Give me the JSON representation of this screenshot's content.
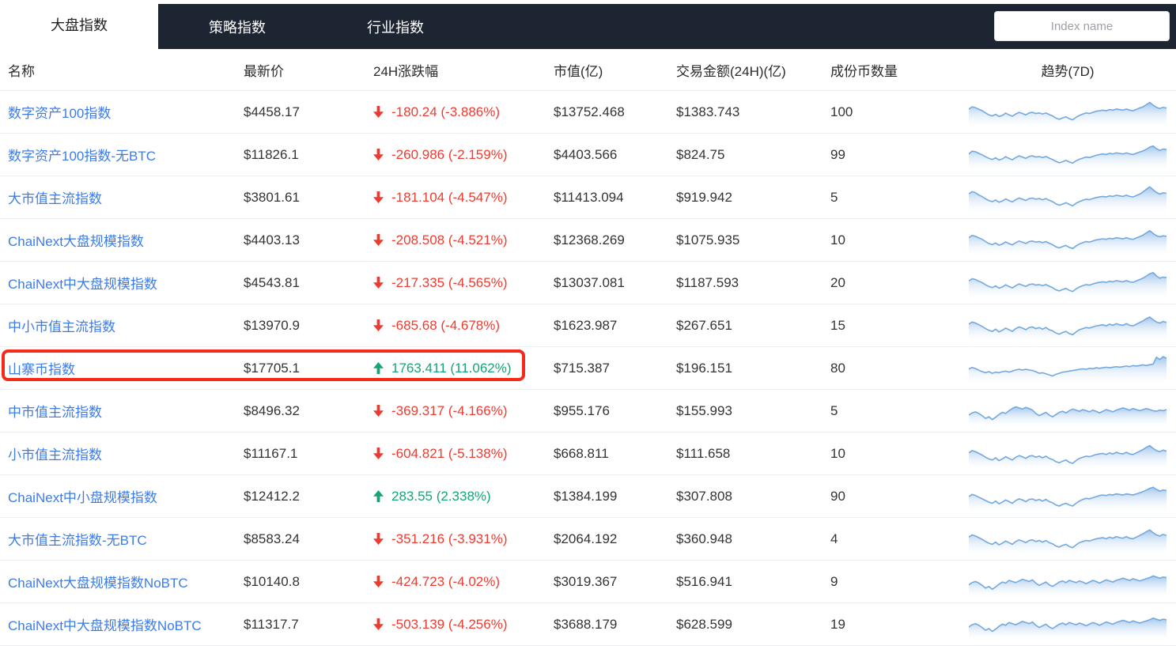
{
  "tabs": {
    "items": [
      "大盘指数",
      "策略指数",
      "行业指数"
    ],
    "active": "大盘指数"
  },
  "search": {
    "placeholder": "Index name"
  },
  "colors": {
    "tabbar_bg": "#1c2531",
    "link_blue": "#3d7ce8",
    "down_red": "#ee3b30",
    "up_green": "#14a576",
    "highlight_border": "#f42a1a",
    "spark_line": "#74a9e0",
    "spark_fill_top": "#9dc3ec"
  },
  "table": {
    "headers": {
      "name": "名称",
      "price": "最新价",
      "change": "24H涨跌幅",
      "market_cap": "市值(亿)",
      "volume": "交易金额(24H)(亿)",
      "coin_count": "成份币数量",
      "trend": "趋势(7D)"
    },
    "rows": [
      {
        "name": "数字资产100指数",
        "price": "$4458.17",
        "direction": "down",
        "change": "-180.24 (-3.886%)",
        "market_cap": "$13752.468",
        "volume": "$1383.743",
        "coin_count": "100",
        "highlighted": false,
        "sparkline": [
          66,
          74,
          71,
          65,
          60,
          52,
          45,
          41,
          47,
          39,
          43,
          51,
          45,
          40,
          48,
          54,
          50,
          45,
          52,
          54,
          50,
          52,
          48,
          52,
          46,
          41,
          33,
          29,
          34,
          38,
          31,
          27,
          36,
          43,
          48,
          52,
          50,
          54,
          58,
          60,
          62,
          60,
          64,
          62,
          66,
          64,
          62,
          66,
          62,
          60,
          65,
          70,
          74,
          82,
          90,
          80,
          72,
          68,
          72,
          70
        ]
      },
      {
        "name": "数字资产100指数-无BTC",
        "price": "$11826.1",
        "direction": "down",
        "change": "-260.986 (-2.159%)",
        "market_cap": "$4403.566",
        "volume": "$824.75",
        "coin_count": "99",
        "highlighted": false,
        "sparkline": [
          58,
          68,
          66,
          60,
          55,
          48,
          42,
          38,
          44,
          36,
          40,
          48,
          42,
          37,
          45,
          51,
          47,
          42,
          49,
          51,
          47,
          49,
          45,
          49,
          43,
          38,
          31,
          26,
          30,
          35,
          29,
          25,
          33,
          39,
          43,
          47,
          45,
          49,
          53,
          56,
          58,
          56,
          60,
          58,
          62,
          60,
          58,
          62,
          58,
          56,
          61,
          65,
          69,
          75,
          83,
          87,
          77,
          71,
          76,
          74
        ]
      },
      {
        "name": "大市值主流指数",
        "price": "$3801.61",
        "direction": "down",
        "change": "-181.104 (-4.547%)",
        "market_cap": "$11413.094",
        "volume": "$919.942",
        "coin_count": "5",
        "highlighted": false,
        "sparkline": [
          68,
          76,
          72,
          64,
          58,
          50,
          44,
          40,
          46,
          38,
          42,
          50,
          44,
          39,
          47,
          53,
          49,
          44,
          51,
          53,
          49,
          51,
          47,
          51,
          45,
          40,
          32,
          27,
          31,
          36,
          30,
          25,
          34,
          40,
          45,
          49,
          47,
          51,
          55,
          57,
          59,
          57,
          61,
          59,
          63,
          61,
          59,
          63,
          59,
          57,
          62,
          67,
          75,
          85,
          93,
          83,
          73,
          67,
          72,
          70
        ]
      },
      {
        "name": "ChaiNext大盘规模指数",
        "price": "$4403.13",
        "direction": "down",
        "change": "-208.508 (-4.521%)",
        "market_cap": "$12368.269",
        "volume": "$1075.935",
        "coin_count": "10",
        "highlighted": false,
        "sparkline": [
          64,
          72,
          69,
          63,
          58,
          50,
          43,
          39,
          45,
          37,
          41,
          49,
          43,
          38,
          46,
          52,
          48,
          43,
          50,
          52,
          48,
          50,
          46,
          50,
          44,
          39,
          31,
          27,
          32,
          36,
          29,
          25,
          34,
          41,
          46,
          50,
          48,
          52,
          56,
          58,
          60,
          58,
          62,
          60,
          64,
          62,
          60,
          64,
          60,
          58,
          63,
          68,
          73,
          81,
          89,
          79,
          71,
          67,
          71,
          69
        ]
      },
      {
        "name": "ChaiNext中大盘规模指数",
        "price": "$4543.81",
        "direction": "down",
        "change": "-217.335 (-4.565%)",
        "market_cap": "$13037.081",
        "volume": "$1187.593",
        "coin_count": "20",
        "highlighted": false,
        "sparkline": [
          62,
          70,
          67,
          61,
          56,
          48,
          42,
          38,
          44,
          36,
          40,
          48,
          42,
          37,
          45,
          51,
          47,
          42,
          49,
          51,
          47,
          49,
          45,
          49,
          43,
          38,
          30,
          26,
          31,
          35,
          28,
          24,
          33,
          40,
          45,
          49,
          47,
          51,
          55,
          57,
          59,
          57,
          61,
          59,
          63,
          61,
          59,
          63,
          59,
          57,
          62,
          67,
          72,
          80,
          88,
          92,
          80,
          72,
          76,
          74
        ]
      },
      {
        "name": "中小市值主流指数",
        "price": "$13970.9",
        "direction": "down",
        "change": "-685.68 (-4.678%)",
        "market_cap": "$1623.987",
        "volume": "$267.651",
        "coin_count": "15",
        "highlighted": false,
        "sparkline": [
          60,
          68,
          64,
          58,
          52,
          44,
          38,
          34,
          42,
          32,
          38,
          46,
          40,
          34,
          44,
          50,
          46,
          40,
          48,
          50,
          44,
          48,
          42,
          48,
          40,
          36,
          28,
          24,
          30,
          34,
          26,
          22,
          32,
          40,
          44,
          48,
          46,
          50,
          54,
          56,
          58,
          54,
          60,
          56,
          62,
          58,
          56,
          62,
          56,
          54,
          60,
          66,
          72,
          80,
          86,
          76,
          68,
          64,
          70,
          66
        ]
      },
      {
        "name": "山寨币指数",
        "price": "$17705.1",
        "direction": "up",
        "change": "1763.411 (11.062%)",
        "market_cap": "$715.387",
        "volume": "$196.151",
        "coin_count": "80",
        "highlighted": true,
        "sparkline": [
          52,
          58,
          54,
          48,
          43,
          39,
          43,
          37,
          41,
          39,
          43,
          45,
          41,
          45,
          49,
          51,
          49,
          51,
          49,
          47,
          43,
          37,
          39,
          35,
          31,
          27,
          33,
          37,
          41,
          43,
          45,
          47,
          49,
          51,
          53,
          51,
          55,
          53,
          57,
          55,
          57,
          59,
          57,
          59,
          61,
          59,
          61,
          63,
          61,
          65,
          63,
          65,
          67,
          65,
          68,
          70,
          95,
          87,
          97,
          91
        ]
      },
      {
        "name": "中市值主流指数",
        "price": "$8496.32",
        "direction": "down",
        "change": "-369.317 (-4.166%)",
        "market_cap": "$955.176",
        "volume": "$155.993",
        "coin_count": "5",
        "highlighted": false,
        "sparkline": [
          40,
          48,
          52,
          46,
          38,
          28,
          34,
          24,
          32,
          42,
          50,
          46,
          56,
          64,
          70,
          66,
          62,
          68,
          64,
          58,
          46,
          38,
          44,
          50,
          40,
          34,
          42,
          50,
          54,
          48,
          56,
          62,
          58,
          54,
          60,
          56,
          52,
          58,
          54,
          48,
          54,
          60,
          56,
          52,
          58,
          62,
          66,
          62,
          58,
          64,
          60,
          56,
          60,
          64,
          60,
          56,
          54,
          58,
          56,
          60
        ]
      },
      {
        "name": "小市值主流指数",
        "price": "$11167.1",
        "direction": "down",
        "change": "-604.821 (-5.138%)",
        "market_cap": "$668.811",
        "volume": "$111.658",
        "coin_count": "10",
        "highlighted": false,
        "sparkline": [
          58,
          66,
          62,
          56,
          50,
          42,
          36,
          32,
          40,
          30,
          36,
          44,
          38,
          32,
          42,
          48,
          44,
          38,
          46,
          48,
          42,
          46,
          40,
          46,
          38,
          34,
          26,
          22,
          28,
          32,
          24,
          20,
          30,
          38,
          42,
          46,
          44,
          48,
          52,
          54,
          56,
          52,
          58,
          54,
          60,
          56,
          54,
          60,
          54,
          52,
          58,
          64,
          70,
          78,
          84,
          74,
          66,
          62,
          68,
          64
        ]
      },
      {
        "name": "ChaiNext中小盘规模指数",
        "price": "$12412.2",
        "direction": "up",
        "change": "283.55 (2.338%)",
        "market_cap": "$1384.199",
        "volume": "$307.808",
        "coin_count": "90",
        "highlighted": false,
        "sparkline": [
          54,
          62,
          58,
          52,
          46,
          40,
          34,
          30,
          38,
          28,
          34,
          42,
          36,
          30,
          40,
          46,
          42,
          36,
          44,
          46,
          40,
          44,
          38,
          44,
          36,
          32,
          24,
          20,
          26,
          30,
          24,
          20,
          30,
          38,
          44,
          48,
          46,
          50,
          54,
          58,
          60,
          58,
          62,
          60,
          64,
          62,
          60,
          64,
          62,
          60,
          64,
          68,
          72,
          78,
          84,
          88,
          80,
          74,
          78,
          76
        ]
      },
      {
        "name": "大市值主流指数-无BTC",
        "price": "$8583.24",
        "direction": "down",
        "change": "-351.216 (-3.931%)",
        "market_cap": "$2064.192",
        "volume": "$360.948",
        "coin_count": "4",
        "highlighted": false,
        "sparkline": [
          62,
          70,
          66,
          60,
          54,
          46,
          40,
          36,
          44,
          34,
          40,
          48,
          42,
          36,
          46,
          52,
          48,
          42,
          50,
          52,
          46,
          50,
          44,
          50,
          42,
          38,
          30,
          26,
          32,
          36,
          28,
          24,
          34,
          42,
          46,
          50,
          48,
          52,
          56,
          58,
          60,
          56,
          62,
          58,
          64,
          60,
          58,
          64,
          58,
          56,
          62,
          68,
          74,
          82,
          88,
          78,
          70,
          66,
          72,
          68
        ]
      },
      {
        "name": "ChaiNext大盘规模指数NoBTC",
        "price": "$10140.8",
        "direction": "down",
        "change": "-424.723 (-4.02%)",
        "market_cap": "$3019.367",
        "volume": "$516.941",
        "coin_count": "9",
        "highlighted": false,
        "sparkline": [
          44,
          52,
          56,
          50,
          42,
          32,
          38,
          28,
          36,
          46,
          54,
          50,
          60,
          56,
          52,
          58,
          64,
          60,
          56,
          62,
          50,
          42,
          48,
          54,
          44,
          38,
          46,
          54,
          58,
          52,
          60,
          56,
          52,
          58,
          54,
          48,
          54,
          60,
          56,
          50,
          56,
          62,
          58,
          54,
          60,
          64,
          68,
          64,
          60,
          66,
          62,
          58,
          62,
          66,
          70,
          76,
          72,
          68,
          72,
          70
        ]
      },
      {
        "name": "ChaiNext中大盘规模指数NoBTC",
        "price": "$11317.7",
        "direction": "down",
        "change": "-503.139 (-4.256%)",
        "market_cap": "$3688.179",
        "volume": "$628.599",
        "coin_count": "19",
        "highlighted": false,
        "sparkline": [
          46,
          54,
          58,
          52,
          44,
          34,
          40,
          30,
          38,
          48,
          56,
          52,
          62,
          58,
          54,
          60,
          66,
          62,
          58,
          64,
          52,
          44,
          50,
          56,
          46,
          40,
          48,
          56,
          60,
          54,
          62,
          58,
          54,
          60,
          56,
          50,
          56,
          62,
          58,
          52,
          58,
          64,
          60,
          56,
          62,
          66,
          70,
          66,
          62,
          68,
          64,
          60,
          64,
          68,
          72,
          78,
          74,
          70,
          74,
          72
        ]
      }
    ]
  }
}
